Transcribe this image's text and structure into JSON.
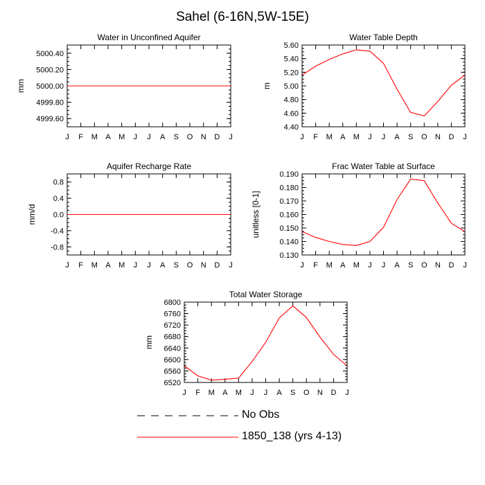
{
  "figure": {
    "title": "Sahel (6-16N,5W-15E)",
    "line_color": "#ff0000",
    "axis_color": "#000000"
  },
  "legend": {
    "items": [
      {
        "label": "No Obs",
        "style": "dashed",
        "color": "#000000"
      },
      {
        "label": "1850_138 (yrs 4-13)",
        "style": "solid",
        "color": "#ff0000"
      }
    ]
  },
  "chart_data": [
    {
      "type": "line",
      "title": "Water in Unconfined Aquifer",
      "xlabel": "",
      "ylabel": "mm",
      "categories": [
        "J",
        "F",
        "M",
        "A",
        "M",
        "J",
        "J",
        "A",
        "S",
        "O",
        "N",
        "D",
        "J"
      ],
      "ylim": [
        4999.5,
        5000.5
      ],
      "yticks": [
        4999.6,
        4999.8,
        5000.0,
        5000.2,
        5000.4
      ],
      "ytick_labels": [
        "4999.60",
        "4999.80",
        "5000.00",
        "5000.20",
        "5000.40"
      ],
      "minor_step": 0.05,
      "series": [
        {
          "name": "1850_138 (yrs 4-13)",
          "values": [
            5000,
            5000,
            5000,
            5000,
            5000,
            5000,
            5000,
            5000,
            5000,
            5000,
            5000,
            5000,
            5000
          ]
        }
      ]
    },
    {
      "type": "line",
      "title": "Water Table Depth",
      "xlabel": "",
      "ylabel": "m",
      "categories": [
        "J",
        "F",
        "M",
        "A",
        "M",
        "J",
        "J",
        "A",
        "S",
        "O",
        "N",
        "D",
        "J"
      ],
      "ylim": [
        4.4,
        5.6
      ],
      "yticks": [
        4.4,
        4.6,
        4.8,
        5.0,
        5.2,
        5.4,
        5.6
      ],
      "ytick_labels": [
        "4.40",
        "4.60",
        "4.80",
        "5.00",
        "5.20",
        "5.40",
        "5.60"
      ],
      "minor_step": 0.05,
      "series": [
        {
          "name": "1850_138 (yrs 4-13)",
          "values": [
            5.16,
            5.29,
            5.39,
            5.47,
            5.53,
            5.51,
            5.33,
            4.95,
            4.61,
            4.56,
            4.77,
            5.01,
            5.16
          ]
        }
      ]
    },
    {
      "type": "line",
      "title": "Aquifer Recharge Rate",
      "xlabel": "",
      "ylabel": "mm/d",
      "categories": [
        "J",
        "F",
        "M",
        "A",
        "M",
        "J",
        "J",
        "A",
        "S",
        "O",
        "N",
        "D",
        "J"
      ],
      "ylim": [
        -1.0,
        1.0
      ],
      "yticks": [
        -0.8,
        -0.4,
        0.0,
        0.4,
        0.8
      ],
      "ytick_labels": [
        "-0.8",
        "-0.4",
        "0.0",
        "0.4",
        "0.8"
      ],
      "minor_step": 0.1,
      "series": [
        {
          "name": "1850_138 (yrs 4-13)",
          "values": [
            0,
            0,
            0,
            0,
            0,
            0,
            0,
            0,
            0,
            0,
            0,
            0,
            0
          ]
        }
      ]
    },
    {
      "type": "line",
      "title": "Frac Water Table at Surface",
      "xlabel": "",
      "ylabel": "unitless [0-1]",
      "categories": [
        "J",
        "F",
        "M",
        "A",
        "M",
        "J",
        "J",
        "A",
        "S",
        "O",
        "N",
        "D",
        "J"
      ],
      "ylim": [
        0.13,
        0.19
      ],
      "yticks": [
        0.13,
        0.14,
        0.15,
        0.16,
        0.17,
        0.18,
        0.19
      ],
      "ytick_labels": [
        "0.130",
        "0.140",
        "0.150",
        "0.160",
        "0.170",
        "0.180",
        "0.190"
      ],
      "minor_step": 0.0025,
      "series": [
        {
          "name": "1850_138 (yrs 4-13)",
          "values": [
            0.1473,
            0.143,
            0.14,
            0.1378,
            0.137,
            0.14,
            0.1505,
            0.171,
            0.1862,
            0.185,
            0.1685,
            0.1535,
            0.1473
          ]
        }
      ]
    },
    {
      "type": "line",
      "title": "Total Water Storage",
      "xlabel": "",
      "ylabel": "mm",
      "categories": [
        "J",
        "F",
        "M",
        "A",
        "M",
        "J",
        "J",
        "A",
        "S",
        "O",
        "N",
        "D",
        "J"
      ],
      "ylim": [
        6520,
        6800
      ],
      "yticks": [
        6520,
        6560,
        6600,
        6640,
        6680,
        6720,
        6760,
        6800
      ],
      "ytick_labels": [
        "6520",
        "6560",
        "6600",
        "6640",
        "6680",
        "6720",
        "6760",
        "6800"
      ],
      "minor_step": 10,
      "series": [
        {
          "name": "1850_138 (yrs 4-13)",
          "values": [
            6578,
            6543,
            6528,
            6531,
            6535,
            6593,
            6660,
            6745,
            6787,
            6746,
            6678,
            6618,
            6578
          ]
        }
      ]
    }
  ]
}
